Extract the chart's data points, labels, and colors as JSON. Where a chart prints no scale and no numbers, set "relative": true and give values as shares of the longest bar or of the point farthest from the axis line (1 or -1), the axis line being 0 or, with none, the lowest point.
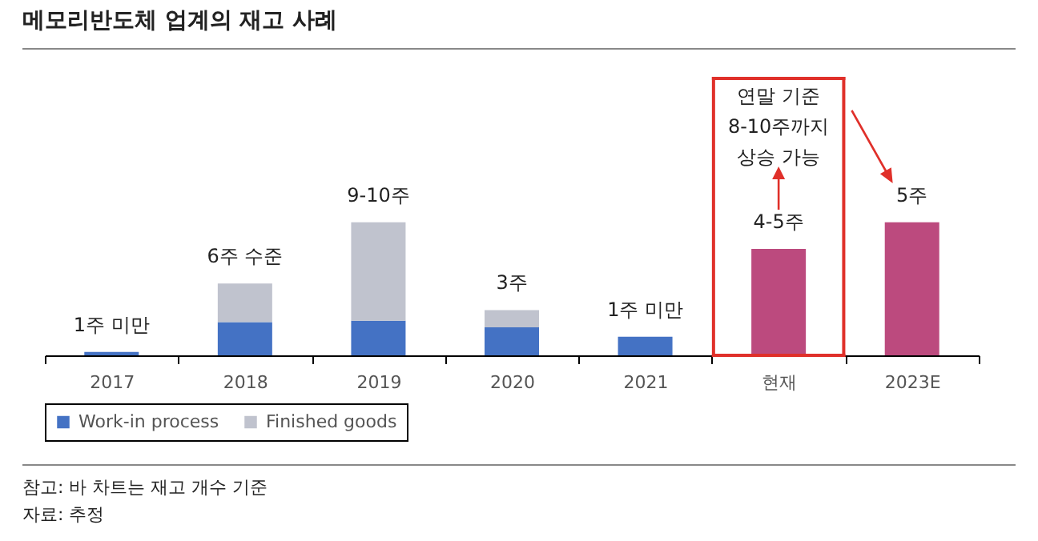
{
  "chart_data": {
    "type": "bar",
    "title": "메모리반도체 업계의 재고 사례",
    "relative": true,
    "stacked": true,
    "categories": [
      "2017",
      "2018",
      "2019",
      "2020",
      "2021",
      "현재",
      "2023E"
    ],
    "series": [
      {
        "name": "Work-in process",
        "color": "#4472c4",
        "values": [
          0.025,
          0.25,
          0.26,
          0.21,
          0.14,
          null,
          null
        ]
      },
      {
        "name": "Finished goods",
        "color": "#c0c3ce",
        "values": [
          null,
          0.29,
          0.74,
          0.13,
          null,
          null,
          null
        ]
      },
      {
        "color": "#bc4a7e",
        "values": [
          null,
          null,
          null,
          null,
          null,
          0.8,
          1.0
        ]
      }
    ],
    "annotations": [
      {
        "text": "1주 미만",
        "x": "2017",
        "y": 0.025
      },
      {
        "text": "6주 수준",
        "x": "2018",
        "y": 0.54
      },
      {
        "text": "9-10주",
        "x": "2019",
        "y": 1.0
      },
      {
        "text": "3주",
        "x": "2020",
        "y": 0.34
      },
      {
        "text": "1주 미만",
        "x": "2021",
        "y": 0.14
      },
      {
        "text": "4-5주",
        "x": "현재",
        "y": 0.8
      },
      {
        "text": "5주",
        "x": "2023E",
        "y": 1.0
      },
      "연말 기준\n8-10주까지\n상승 가능",
      "참고: 바 차트는 재고 개수 기준",
      "자료: 추정"
    ],
    "legend": "bottom",
    "grid": false
  }
}
